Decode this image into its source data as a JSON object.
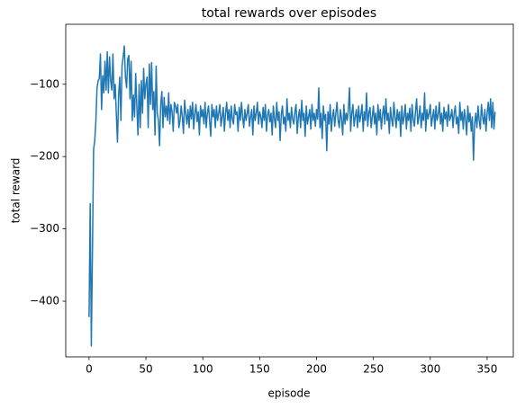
{
  "chart_data": {
    "type": "line",
    "title": "total rewards over episodes",
    "xlabel": "episode",
    "ylabel": "total reward",
    "xlim": [
      -20.5,
      373
    ],
    "xticks": [
      0,
      50,
      100,
      150,
      200,
      250,
      300,
      350
    ],
    "ylim": [
      -477,
      -17
    ],
    "yticks": [
      {
        "value": -400,
        "label": "−400"
      },
      {
        "value": -300,
        "label": "−300"
      },
      {
        "value": -200,
        "label": "−200"
      },
      {
        "value": -100,
        "label": "−100"
      }
    ],
    "grid": false,
    "series": [
      {
        "name": "total reward",
        "color": "#1f77b4",
        "values": [
          -422,
          -265,
          -462,
          -330,
          -190,
          -178,
          -150,
          -105,
          -95,
          -92,
          -58,
          -135,
          -88,
          -112,
          -68,
          -108,
          -55,
          -112,
          -62,
          -95,
          -108,
          -58,
          -120,
          -100,
          -142,
          -180,
          -115,
          -90,
          -150,
          -75,
          -62,
          -47,
          -90,
          -105,
          -65,
          -60,
          -120,
          -68,
          -150,
          -115,
          -145,
          -85,
          -130,
          -170,
          -100,
          -160,
          -95,
          -140,
          -78,
          -120,
          -100,
          -90,
          -160,
          -72,
          -128,
          -70,
          -135,
          -110,
          -170,
          -75,
          -140,
          -150,
          -185,
          -128,
          -110,
          -160,
          -118,
          -145,
          -130,
          -150,
          -112,
          -155,
          -128,
          -138,
          -165,
          -125,
          -130,
          -140,
          -128,
          -160,
          -150,
          -130,
          -145,
          -168,
          -122,
          -140,
          -155,
          -135,
          -160,
          -130,
          -148,
          -125,
          -162,
          -140,
          -128,
          -152,
          -138,
          -170,
          -130,
          -145,
          -135,
          -155,
          -125,
          -160,
          -140,
          -130,
          -150,
          -172,
          -128,
          -145,
          -135,
          -160,
          -130,
          -150,
          -140,
          -128,
          -158,
          -145,
          -132,
          -165,
          -140,
          -125,
          -150,
          -135,
          -160,
          -130,
          -148,
          -155,
          -128,
          -142,
          -138,
          -165,
          -132,
          -150,
          -125,
          -145,
          -160,
          -135,
          -150,
          -140,
          -128,
          -158,
          -145,
          -135,
          -170,
          -130,
          -150,
          -140,
          -125,
          -155,
          -138,
          -145,
          -160,
          -132,
          -150,
          -128,
          -165,
          -142,
          -135,
          -152,
          -140,
          -170,
          -130,
          -148,
          -160,
          -125,
          -150,
          -138,
          -178,
          -142,
          -130,
          -155,
          -145,
          -165,
          -120,
          -150,
          -140,
          -160,
          -132,
          -148,
          -155,
          -138,
          -128,
          -168,
          -145,
          -135,
          -160,
          -122,
          -150,
          -140,
          -172,
          -130,
          -155,
          -145,
          -135,
          -162,
          -128,
          -150,
          -140,
          -158,
          -135,
          -148,
          -105,
          -160,
          -140,
          -175,
          -130,
          -150,
          -142,
          -192,
          -138,
          -155,
          -128,
          -165,
          -145,
          -135,
          -158,
          -140,
          -125,
          -150,
          -160,
          -135,
          -148,
          -170,
          -128,
          -155,
          -140,
          -150,
          -135,
          -105,
          -165,
          -140,
          -128,
          -158,
          -145,
          -135,
          -160,
          -130,
          -152,
          -142,
          -128,
          -165,
          -138,
          -150,
          -112,
          -158,
          -140,
          -132,
          -160,
          -145,
          -130,
          -155,
          -140,
          -170,
          -128,
          -150,
          -135,
          -162,
          -142,
          -130,
          -155,
          -120,
          -150,
          -140,
          -168,
          -132,
          -148,
          -158,
          -125,
          -145,
          -160,
          -135,
          -150,
          -138,
          -172,
          -130,
          -155,
          -145,
          -128,
          -162,
          -140,
          -150,
          -133,
          -165,
          -128,
          -148,
          -158,
          -138,
          -120,
          -155,
          -145,
          -130,
          -160,
          -140,
          -150,
          -112,
          -165,
          -135,
          -148,
          -140,
          -128,
          -158,
          -145,
          -135,
          -162,
          -130,
          -150,
          -142,
          -125,
          -155,
          -140,
          -165,
          -132,
          -148,
          -138,
          -158,
          -128,
          -150,
          -145,
          -135,
          -160,
          -140,
          -130,
          -155,
          -145,
          -168,
          -125,
          -150,
          -138,
          -162,
          -135,
          -148,
          -170,
          -130,
          -152,
          -140,
          -165,
          -145,
          -205,
          -155,
          -140,
          -160,
          -130,
          -150,
          -162,
          -128,
          -145,
          -155,
          -135,
          -165,
          -140,
          -125,
          -150,
          -120,
          -160,
          -125,
          -162,
          -138
        ]
      }
    ]
  }
}
